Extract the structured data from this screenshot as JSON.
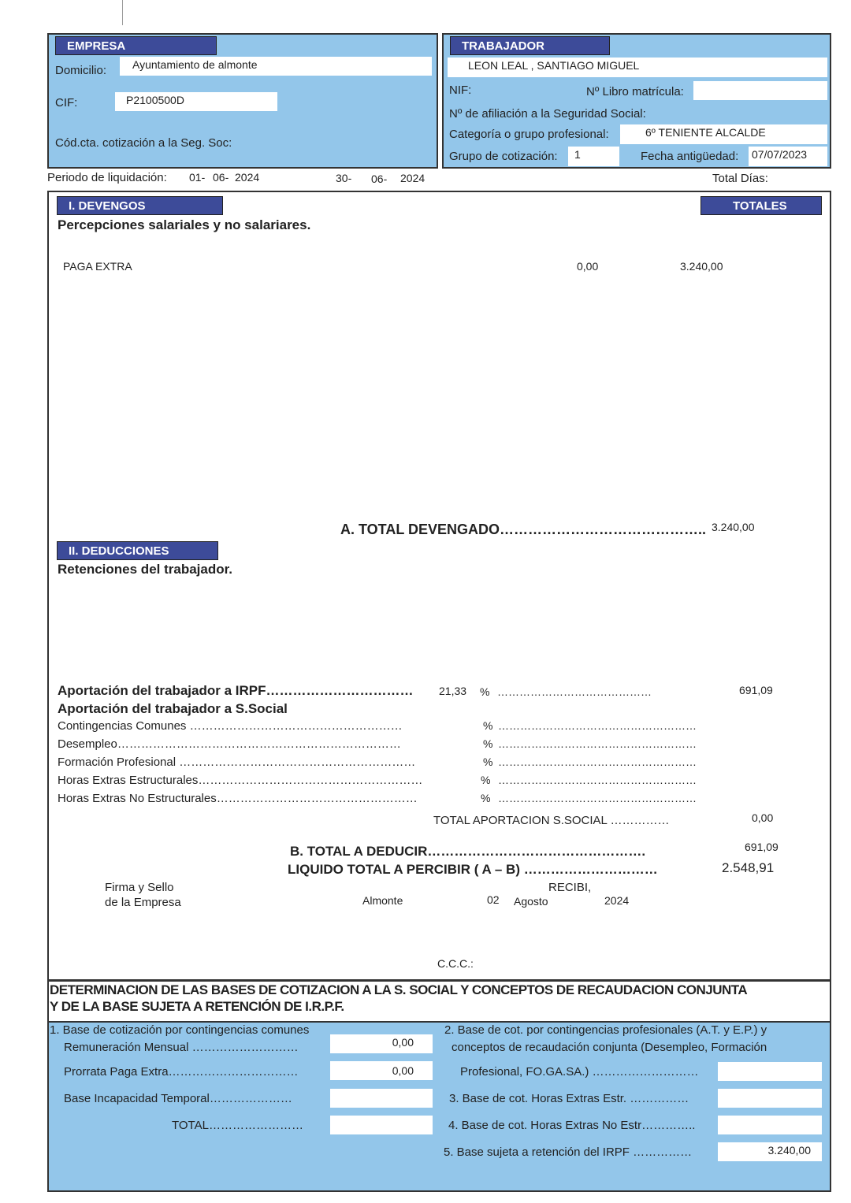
{
  "colors": {
    "panel": "#93c6ea",
    "header": "#3d4b99"
  },
  "empresa": {
    "title": "EMPRESA",
    "domicilio_label": "Domicilio:",
    "domicilio": "Ayuntamiento de almonte",
    "cif_label": "CIF:",
    "cif": "P2100500D",
    "ccc_label": "Cód.cta. cotización a la Seg. Soc:"
  },
  "trabajador": {
    "title": "TRABAJADOR",
    "nombre": "LEON LEAL , SANTIAGO MIGUEL",
    "nif_label": "NIF:",
    "libro_label": "Nº Libro matrícula:",
    "afiliacion_label": "Nº de afiliación a la Seguridad Social:",
    "categoria_label": "Categoría o grupo profesional:",
    "categoria": "6º TENIENTE ALCALDE",
    "grupo_label": "Grupo de cotización:",
    "grupo": "1",
    "antiguedad_label": "Fecha antigüedad:",
    "antiguedad": "07/07/2023"
  },
  "periodo": {
    "label": "Periodo de liquidación:",
    "desde_d": "01-",
    "desde_m": "06-",
    "desde_y": "2024",
    "hasta_d": "30-",
    "hasta_m": "06-",
    "hasta_y": "2024",
    "total_dias_label": "Total Días:"
  },
  "devengos": {
    "title": "I. DEVENGOS",
    "totales": "TOTALES",
    "subtitle": "Percepciones salariales y no salariares.",
    "items": [
      {
        "concepto": "PAGA EXTRA",
        "col1": "0,00",
        "col2": "3.240,00"
      }
    ],
    "total_label": "A. TOTAL DEVENGADO……………………………………..",
    "total": "3.240,00"
  },
  "deducciones": {
    "title": "II. DEDUCCIONES",
    "subtitle": "Retenciones del trabajador.",
    "irpf_label": "Aportación del trabajador a IRPF……………………………",
    "irpf_pct": "21,33",
    "pct": "%",
    "irpf_dots": "……………………………………",
    "irpf_total": "691,09",
    "ss_label": "Aportación del trabajador a S.Social",
    "ss_items": [
      {
        "label": "Contingencias Comunes ………………………………………………"
      },
      {
        "label": "Desempleo………………………………………………………………"
      },
      {
        "label": "Formación Profesional ……………………………………………………"
      },
      {
        "label": "Horas Extras Estructurales…………………………………………………"
      },
      {
        "label": "Horas Extras No Estructurales……………………………………………"
      }
    ],
    "ss_dots": "………………………………………………",
    "total_ss_label": "TOTAL APORTACION S.SOCIAL ……………",
    "total_ss": "0,00",
    "total_deducir_label": "B. TOTAL A DEDUCIR………………………………………….",
    "total_deducir": "691,09",
    "liquido_label": "LIQUIDO TOTAL A PERCIBIR ( A – B) …………………………",
    "liquido": "2.548,91"
  },
  "firma": {
    "empresa_1": "Firma y Sello",
    "empresa_2": "de la Empresa",
    "recibi": "RECIBI,",
    "lugar": "Almonte",
    "dia": "02",
    "mes": "Agosto",
    "anio": "2024",
    "ccc": "C.C.C.:"
  },
  "bases": {
    "title_1": "DETERMINACION DE LAS BASES DE COTIZACION A LA S. SOCIAL Y CONCEPTOS DE RECAUDACION CONJUNTA",
    "title_2": "Y DE LA BASE SUJETA A RETENCIÓN DE I.R.P.F.",
    "b1_title": "1. Base de cotización por contingencias comunes",
    "remuneracion_label": "Remuneración Mensual ………………………",
    "remuneracion": "0,00",
    "prorrata_label": "Prorrata Paga Extra……………………………",
    "prorrata": "0,00",
    "incapacidad_label": "Base Incapacidad Temporal…………………",
    "total_label": "TOTAL……………………",
    "b2_line1": "2. Base de cot. por contingencias profesionales (A.T. y E.P.) y",
    "b2_line2": "conceptos de recaudación conjunta (Desempleo, Formación",
    "b2_line3": "Profesional, FO.GA.SA.) ………………………",
    "b3_label": "3. Base  de cot. Horas Extras Estr. ……………",
    "b4_label": "4. Base de cot. Horas Extras No Estr…………..",
    "b5_label": "5. Base sujeta a retención del IRPF ……………",
    "b5": "3.240,00"
  }
}
